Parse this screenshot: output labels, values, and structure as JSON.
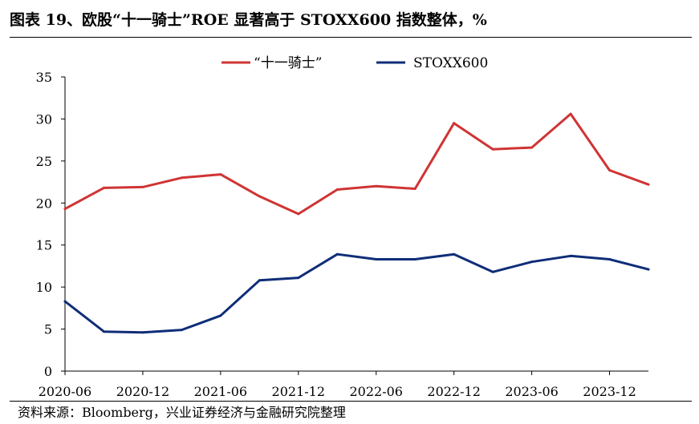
{
  "title": "图表 19、欧股“十一骑士”ROE 显著高于 STOXX600 指数整体，%",
  "source": "资料来源：Bloomberg，兴业证券经济与金融研究院整理",
  "chart_data": {
    "type": "line",
    "title": "图表 19、欧股“十一骑士”ROE 显著高于 STOXX600 指数整体，%",
    "xlabel": "",
    "ylabel": "",
    "x": [
      "2020-06",
      "2020-09",
      "2020-12",
      "2021-03",
      "2021-06",
      "2021-09",
      "2021-12",
      "2022-03",
      "2022-06",
      "2022-09",
      "2022-12",
      "2023-03",
      "2023-06",
      "2023-09",
      "2023-12",
      "2024-03"
    ],
    "x_tick_labels": [
      "2020-06",
      "2020-12",
      "2021-06",
      "2021-12",
      "2022-06",
      "2022-12",
      "2023-06",
      "2023-12"
    ],
    "ylim": [
      0,
      35
    ],
    "y_ticks": [
      0,
      5,
      10,
      15,
      20,
      25,
      30,
      35
    ],
    "grid": false,
    "legend_position": "top-center",
    "series": [
      {
        "name": "“十一骑士”",
        "color": "#d03434",
        "values": [
          19.3,
          21.8,
          21.9,
          23.0,
          23.4,
          20.8,
          18.7,
          21.6,
          22.0,
          21.7,
          29.5,
          26.4,
          26.6,
          30.6,
          23.9,
          22.2
        ]
      },
      {
        "name": "STOXX600",
        "color": "#0f2d78",
        "values": [
          8.3,
          4.7,
          4.6,
          4.9,
          6.6,
          10.8,
          11.1,
          13.9,
          13.3,
          13.3,
          13.9,
          11.8,
          13.0,
          13.7,
          13.3,
          12.1
        ]
      }
    ]
  }
}
